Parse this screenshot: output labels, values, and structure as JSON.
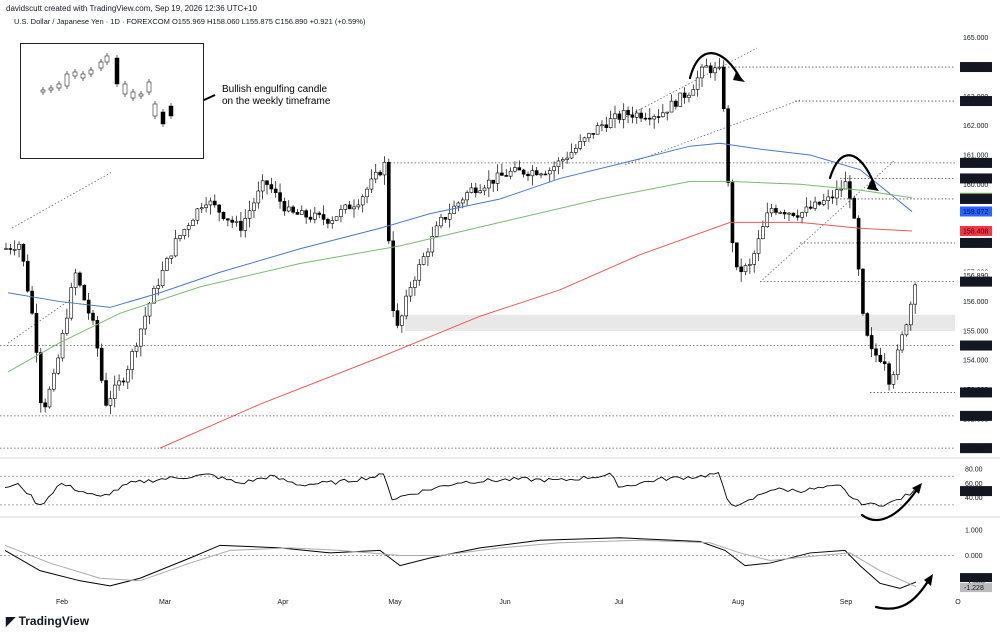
{
  "header": {
    "created_by": "davidscutt created with TradingView.com, Sep 19, 2026 12:36 UTC+10",
    "symbol_line": "U.S. Dollar / Japanese Yen · 1D · FOREXCOM  O155.969  H158.060  L155.875  C156.890  +0.921 (+0.59%)"
  },
  "brand": "TradingView",
  "annotation": {
    "line1": "Bullish engulfing candle",
    "line2": "on the weekly timeframe"
  },
  "colors": {
    "up": "#ffffff",
    "down": "#000000",
    "ma_blue": "#4a78c8",
    "ma_green": "#7cb877",
    "ma_red": "#e85a5a",
    "badge_green": "#6aa84f",
    "badge_blue": "#2962ff",
    "badge_red": "#f23645"
  },
  "chart_data": [
    {
      "type": "candlestick",
      "title": "U.S. Dollar / Japanese Yen · 1D · FOREXCOM",
      "x_ticks": [
        "Feb",
        "Mar",
        "Apr",
        "May",
        "Jun",
        "Jul",
        "Aug",
        "Sep",
        "O"
      ],
      "y_ticks": [
        165.0,
        164.0,
        163.0,
        162.0,
        161.0,
        160.0,
        159.0,
        158.0,
        157.0,
        156.0,
        155.0,
        154.0,
        153.0,
        152.0,
        151.0
      ],
      "y_range": [
        150.8,
        165.4
      ],
      "price_labels": [
        {
          "value": 164.0,
          "text": "164.000",
          "style": "dark"
        },
        {
          "value": 162.84,
          "text": "162.840",
          "style": "dark"
        },
        {
          "value": 160.73,
          "text": "160.730",
          "style": "dark"
        },
        {
          "value": 160.2,
          "text": "160.200",
          "style": "dark"
        },
        {
          "value": 159.54,
          "text": "159.540",
          "style": "green"
        },
        {
          "value": 159.5,
          "text": "159.500",
          "style": "dark"
        },
        {
          "value": 159.072,
          "text": "159.072",
          "style": "blue"
        },
        {
          "value": 158.408,
          "text": "158.408",
          "style": "red"
        },
        {
          "value": 158.0,
          "text": "158.000",
          "style": "dark"
        },
        {
          "value": 156.89,
          "text": "156.890",
          "style": "plain"
        },
        {
          "value": 156.68,
          "text": "156.680",
          "style": "dark"
        },
        {
          "value": 154.5,
          "text": "154.500",
          "style": "dark"
        },
        {
          "value": 152.9,
          "text": "152.900",
          "style": "dark"
        },
        {
          "value": 152.1,
          "text": "152.100",
          "style": "dark"
        },
        {
          "value": 151.0,
          "text": "151.000",
          "style": "dark"
        }
      ],
      "horizontal_levels": [
        164.0,
        162.84,
        160.73,
        160.2,
        159.5,
        158.0,
        156.68,
        154.5,
        152.9,
        152.1,
        151.0
      ],
      "support_zone": [
        155.0,
        155.55
      ],
      "last_close": 156.89,
      "moving_averages": [
        {
          "color": "blue",
          "last": 159.072
        },
        {
          "color": "green",
          "last": 159.54
        },
        {
          "color": "red",
          "last": 158.408
        }
      ]
    },
    {
      "type": "line",
      "y_ticks": [
        80.0,
        60.0,
        40.0
      ],
      "y_range": [
        20,
        90
      ],
      "levels": [
        70,
        30
      ],
      "last_value": 49.29,
      "last_label": "49.29"
    },
    {
      "type": "line",
      "y_ticks": [
        1.0,
        0.0,
        -1.0
      ],
      "y_range": [
        -1.6,
        1.4
      ],
      "zero_line": 0.0,
      "series": [
        {
          "line": "main",
          "last": -1.051,
          "last_label": "-1.051"
        },
        {
          "line": "signal",
          "last": -1.228,
          "last_label": "-1.228"
        }
      ]
    }
  ]
}
